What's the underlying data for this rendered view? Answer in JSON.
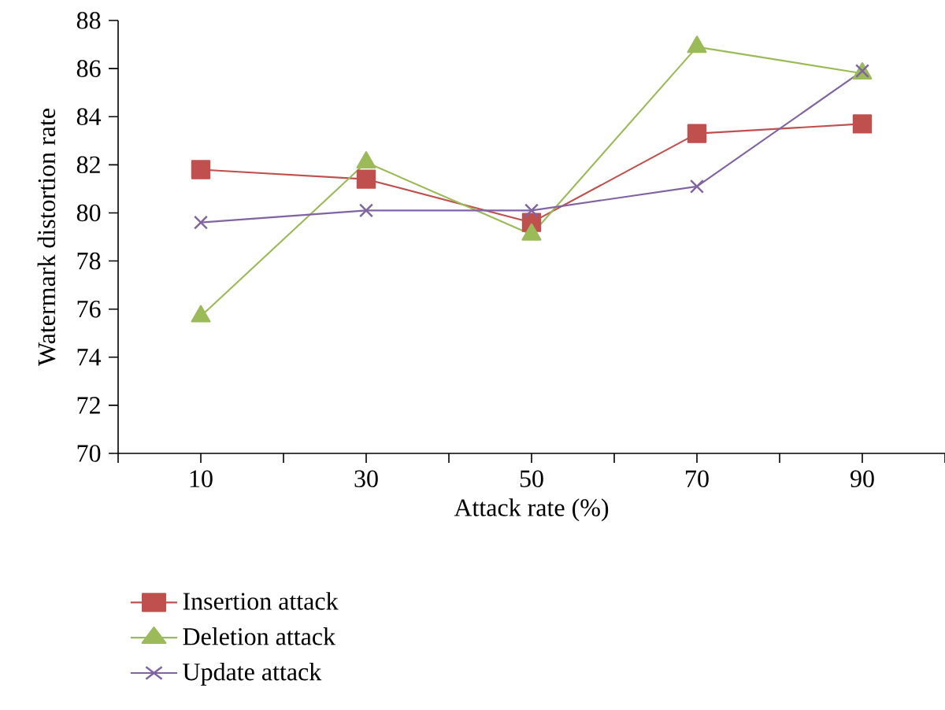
{
  "chart_data": {
    "type": "line",
    "xlabel": "Attack rate (%)",
    "ylabel": "Watermark distortion rate",
    "categories": [
      "10",
      "30",
      "50",
      "70",
      "90"
    ],
    "ylim": [
      70,
      88
    ],
    "yticks": [
      70,
      72,
      74,
      76,
      78,
      80,
      82,
      84,
      86,
      88
    ],
    "grid": false,
    "legend": "bottom left",
    "line_style": "solid",
    "series": [
      {
        "name": "Insertion attack",
        "color": "#c0504d",
        "marker": "square",
        "values": [
          81.8,
          81.4,
          79.6,
          83.3,
          83.7
        ]
      },
      {
        "name": "Deletion attack",
        "color": "#9bbb59",
        "marker": "triangle",
        "values": [
          75.7,
          82.1,
          79.1,
          86.9,
          85.8
        ]
      },
      {
        "name": "Update attack",
        "color": "#8064a2",
        "marker": "cross",
        "values": [
          79.6,
          80.1,
          80.1,
          81.1,
          85.9
        ]
      }
    ]
  }
}
